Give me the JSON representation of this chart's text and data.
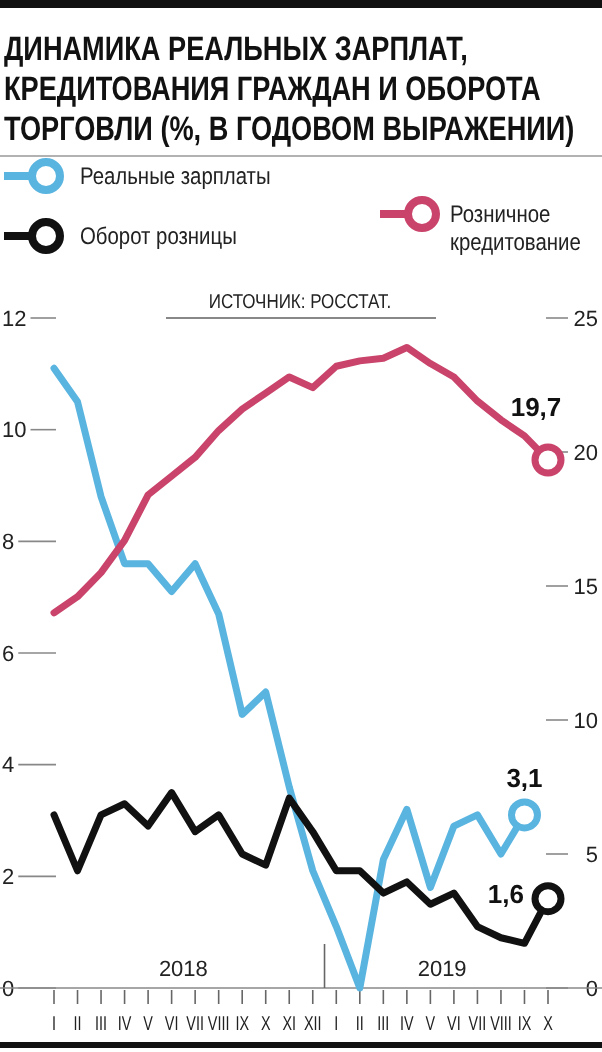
{
  "chart_data": {
    "type": "line",
    "title": "ДИНАМИКА РЕАЛЬНЫХ ЗАРПЛАТ, КРЕДИТОВАНИЯ ГРАЖДАН И ОБОРОТА ТОРГОВЛИ (%, В ГОДОВОМ ВЫРАЖЕНИИ)",
    "categories": [
      "I",
      "II",
      "III",
      "IV",
      "V",
      "VI",
      "VII",
      "VIII",
      "IX",
      "X",
      "XI",
      "XII",
      "I",
      "II",
      "III",
      "IV",
      "V",
      "VI",
      "VII",
      "VIII",
      "IX",
      "X"
    ],
    "series": [
      {
        "name": "Реальные зарплаты",
        "color": "#5ab4e0",
        "values": [
          11.1,
          10.5,
          8.8,
          7.6,
          7.6,
          7.1,
          7.6,
          6.7,
          4.9,
          5.3,
          3.6,
          2.1,
          1.1,
          0,
          2.3,
          3.2,
          1.8,
          2.9,
          3.1,
          2.4,
          3.1,
          null
        ],
        "value_labels": [
          null,
          null,
          null,
          null,
          null,
          null,
          null,
          null,
          null,
          null,
          null,
          null,
          null,
          null,
          null,
          null,
          null,
          null,
          null,
          null,
          "3,1",
          null
        ]
      },
      {
        "name": "Оборот розницы",
        "color": "#111111",
        "values": [
          3.1,
          2.1,
          3.1,
          3.3,
          2.9,
          3.5,
          2.8,
          3.1,
          2.4,
          2.2,
          3.4,
          2.8,
          2.1,
          2.1,
          1.7,
          1.9,
          1.5,
          1.7,
          1.1,
          0.9,
          0.8,
          1.6
        ],
        "value_labels": [
          null,
          null,
          null,
          null,
          null,
          null,
          null,
          null,
          null,
          null,
          null,
          null,
          null,
          null,
          null,
          null,
          null,
          null,
          null,
          null,
          null,
          "1,6"
        ]
      },
      {
        "name": "Розничное кредитование",
        "color": "#c9436a",
        "axis": "y2",
        "values": [
          14.0,
          14.6,
          15.5,
          16.7,
          18.4,
          19.1,
          19.8,
          20.8,
          21.6,
          22.2,
          22.8,
          22.4,
          23.2,
          23.4,
          23.5,
          23.9,
          23.3,
          22.8,
          21.9,
          21.2,
          20.6,
          19.7
        ],
        "value_labels": [
          null,
          null,
          null,
          null,
          null,
          null,
          null,
          null,
          null,
          null,
          null,
          null,
          null,
          null,
          null,
          null,
          null,
          null,
          null,
          null,
          null,
          "19,7"
        ]
      }
    ],
    "ylim": [
      0,
      12
    ],
    "yticks": [
      0,
      2,
      4,
      6,
      8,
      10,
      12
    ],
    "y2lim": [
      0,
      25
    ],
    "y2ticks": [
      0,
      5,
      10,
      15,
      20,
      25
    ],
    "annotations": [
      "ИСТОЧНИК: РОССТАТ.",
      "2018",
      "2019"
    ],
    "legend": "top",
    "grid": false
  }
}
